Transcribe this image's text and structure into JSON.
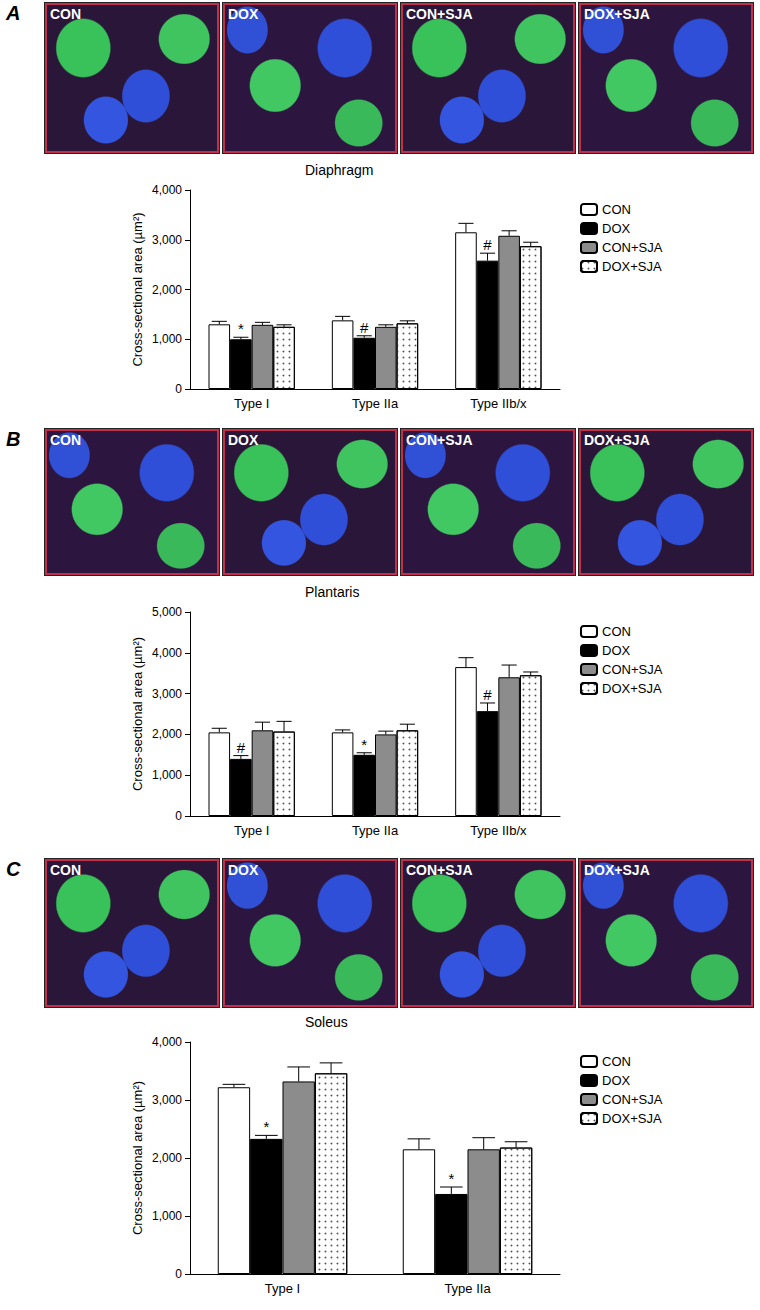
{
  "panels": [
    {
      "label": "A",
      "images": [
        "CON",
        "DOX",
        "CON+SJA",
        "DOX+SJA"
      ]
    },
    {
      "label": "B",
      "images": [
        "CON",
        "DOX",
        "CON+SJA",
        "DOX+SJA"
      ]
    },
    {
      "label": "C",
      "images": [
        "CON",
        "DOX",
        "CON+SJA",
        "DOX+SJA"
      ]
    }
  ],
  "chart_data": [
    {
      "type": "bar",
      "title": "Diaphragm",
      "y_label": "Cross-sectional area (µm²)",
      "categories": [
        "Type I",
        "Type IIa",
        "Type IIb/x"
      ],
      "series": [
        {
          "name": "CON",
          "color": "#ffffff",
          "values": [
            1300,
            1380,
            3150
          ],
          "errors": [
            60,
            80,
            180
          ]
        },
        {
          "name": "DOX",
          "color": "#000000",
          "values": [
            1000,
            1030,
            2580
          ],
          "errors": [
            40,
            40,
            150
          ],
          "annotations": [
            "*",
            "#",
            "#"
          ]
        },
        {
          "name": "CON+SJA",
          "color": "#8c8c8c",
          "values": [
            1290,
            1250,
            3080
          ],
          "errors": [
            50,
            40,
            100
          ]
        },
        {
          "name": "DOX+SJA",
          "color": "#d9d9d9",
          "values": [
            1250,
            1320,
            2870
          ],
          "errors": [
            40,
            50,
            80
          ]
        }
      ],
      "ylim": [
        0,
        4000
      ],
      "yticks": [
        0,
        1000,
        2000,
        3000,
        4000
      ],
      "legend": "right",
      "grid": false
    },
    {
      "type": "bar",
      "title": "Plantaris",
      "y_label": "Cross-sectional area (µm²)",
      "categories": [
        "Type I",
        "Type IIa",
        "Type IIb/x"
      ],
      "series": [
        {
          "name": "CON",
          "color": "#ffffff",
          "values": [
            2050,
            2050,
            3650
          ],
          "errors": [
            100,
            60,
            230
          ]
        },
        {
          "name": "DOX",
          "color": "#000000",
          "values": [
            1400,
            1500,
            2570
          ],
          "errors": [
            80,
            50,
            200
          ],
          "annotations": [
            "#",
            "*",
            "#"
          ]
        },
        {
          "name": "CON+SJA",
          "color": "#8c8c8c",
          "values": [
            2100,
            2000,
            3400
          ],
          "errors": [
            200,
            80,
            300
          ]
        },
        {
          "name": "DOX+SJA",
          "color": "#d9d9d9",
          "values": [
            2070,
            2100,
            3450
          ],
          "errors": [
            250,
            150,
            80
          ]
        }
      ],
      "ylim": [
        0,
        5000
      ],
      "yticks": [
        0,
        1000,
        2000,
        3000,
        4000,
        5000
      ],
      "legend": "right",
      "grid": false
    },
    {
      "type": "bar",
      "title": "Soleus",
      "y_label": "Cross-sectional area (µm²)",
      "categories": [
        "Type I",
        "Type IIa"
      ],
      "series": [
        {
          "name": "CON",
          "color": "#ffffff",
          "values": [
            3220,
            2150
          ],
          "errors": [
            50,
            180
          ]
        },
        {
          "name": "DOX",
          "color": "#000000",
          "values": [
            2330,
            1380
          ],
          "errors": [
            60,
            120
          ],
          "annotations": [
            "*",
            "*"
          ]
        },
        {
          "name": "CON+SJA",
          "color": "#8c8c8c",
          "values": [
            3320,
            2150
          ],
          "errors": [
            250,
            200
          ]
        },
        {
          "name": "DOX+SJA",
          "color": "#d9d9d9",
          "values": [
            3460,
            2180
          ],
          "errors": [
            180,
            100
          ]
        }
      ],
      "ylim": [
        0,
        4000
      ],
      "yticks": [
        0,
        1000,
        2000,
        3000,
        4000
      ],
      "legend": "right",
      "grid": false
    }
  ]
}
